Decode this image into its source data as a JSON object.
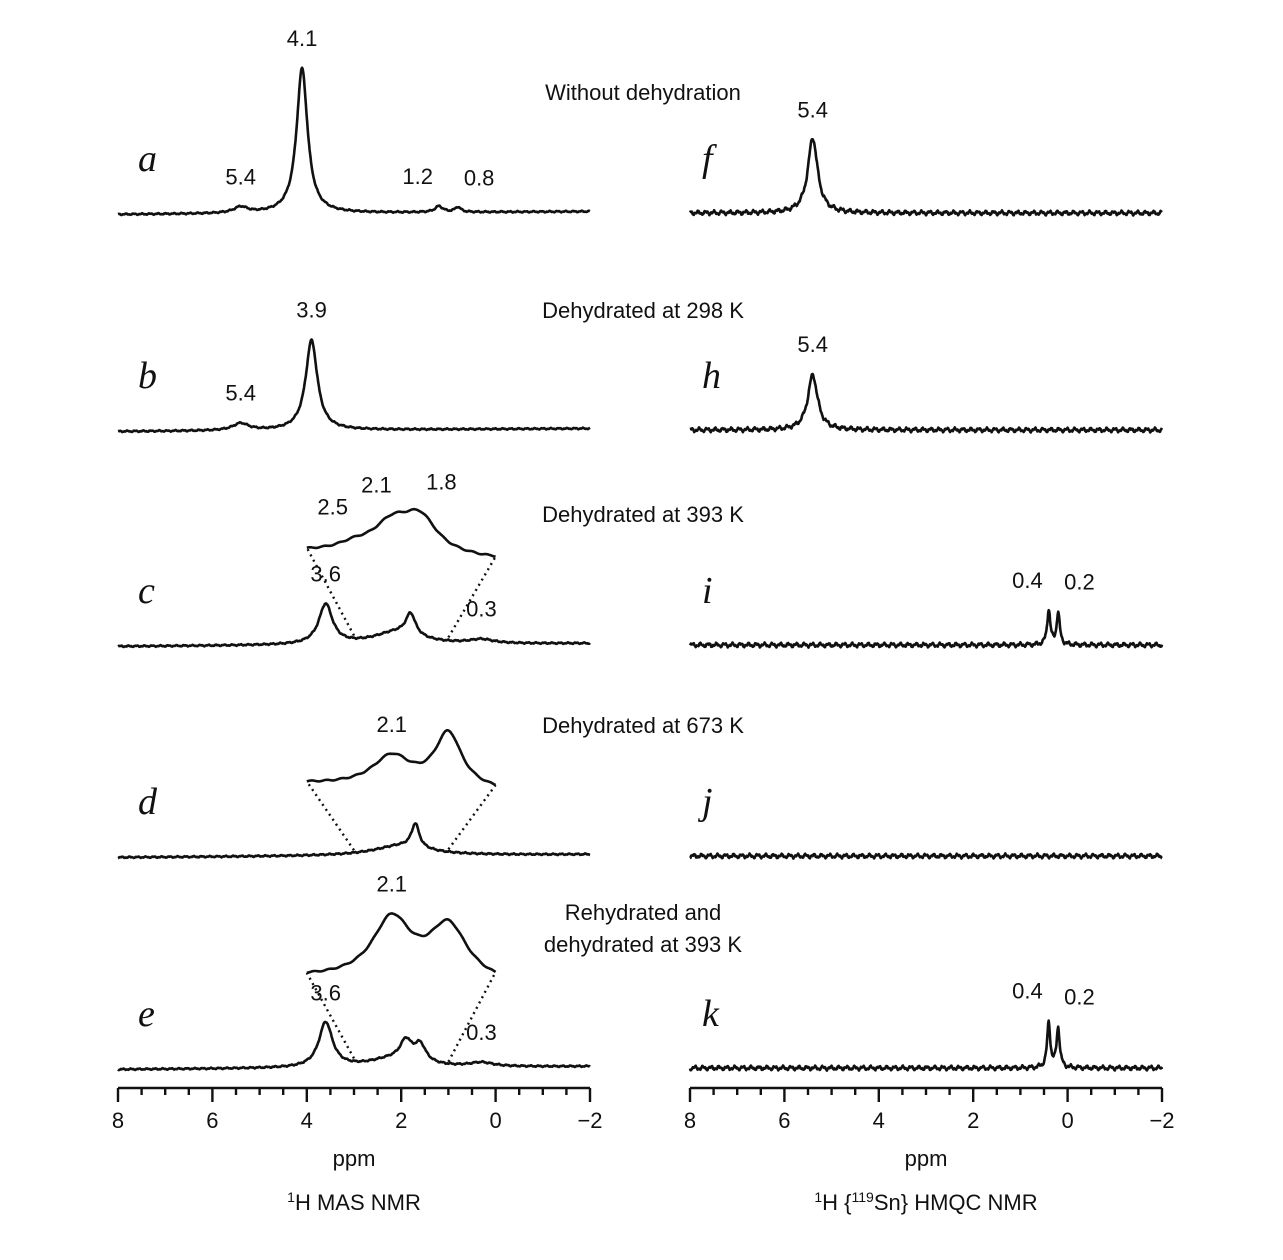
{
  "conditions": [
    [
      "Without dehydration"
    ],
    [
      "Dehydrated at 298 K"
    ],
    [
      "Dehydrated at 393 K"
    ],
    [
      "Dehydrated at 673 K"
    ],
    [
      "Rehydrated and",
      "dehydrated at 393 K"
    ]
  ],
  "panels": [
    {
      "title_parts": [
        {
          "text": "1",
          "sup": true
        },
        {
          "text": "H MAS NMR"
        }
      ],
      "x_label": "ppm",
      "xlim": [
        8,
        -2
      ],
      "xticks": [
        8,
        6,
        4,
        2,
        0,
        {
          "value": -2,
          "label": "−2"
        }
      ],
      "spectra": [
        {
          "letter": "a",
          "peaks": [
            {
              "ppm": 5.4,
              "intensity": 6,
              "fwhm": 0.35
            },
            {
              "ppm": 4.1,
              "intensity": 145,
              "fwhm": 0.28
            },
            {
              "ppm": 1.2,
              "intensity": 6,
              "fwhm": 0.2
            },
            {
              "ppm": 0.8,
              "intensity": 5,
              "fwhm": 0.15
            }
          ]
        },
        {
          "letter": "b",
          "peaks": [
            {
              "ppm": 5.4,
              "intensity": 7,
              "fwhm": 0.4
            },
            {
              "ppm": 3.9,
              "intensity": 90,
              "fwhm": 0.3
            }
          ]
        },
        {
          "letter": "c",
          "peaks": [
            {
              "ppm": 3.6,
              "intensity": 40,
              "fwhm": 0.35
            },
            {
              "ppm": 0.3,
              "intensity": 4,
              "fwhm": 0.6
            }
          ],
          "other_peaks": [
            {
              "ppm": 2.1,
              "intensity": 12,
              "fwhm": 1.2
            },
            {
              "ppm": 1.8,
              "intensity": 22,
              "fwhm": 0.25
            }
          ],
          "inset": {
            "range": [
              3,
              1
            ],
            "peaks": [
              {
                "ppm": 2.5,
                "intensity": 6,
                "fwhm": 0.4
              },
              {
                "ppm": 2.1,
                "intensity": 28,
                "fwhm": 0.5
              },
              {
                "ppm": 1.8,
                "intensity": 34,
                "fwhm": 0.45
              }
            ]
          }
        },
        {
          "letter": "d",
          "peaks": [],
          "other_peaks": [
            {
              "ppm": 1.7,
              "intensity": 24,
              "fwhm": 0.2
            },
            {
              "ppm": 2.0,
              "intensity": 10,
              "fwhm": 1.4
            }
          ],
          "inset": {
            "range": [
              3,
              1
            ],
            "peaks": [
              {
                "ppm": 2.1,
                "intensity": 30,
                "fwhm": 0.5
              }
            ],
            "other_peaks": [
              {
                "ppm": 1.5,
                "intensity": 55,
                "fwhm": 0.35
              }
            ]
          }
        },
        {
          "letter": "e",
          "peaks": [
            {
              "ppm": 3.6,
              "intensity": 45,
              "fwhm": 0.35
            },
            {
              "ppm": 0.3,
              "intensity": 4,
              "fwhm": 0.6
            }
          ],
          "other_peaks": [
            {
              "ppm": 1.9,
              "intensity": 20,
              "fwhm": 0.3
            },
            {
              "ppm": 1.6,
              "intensity": 18,
              "fwhm": 0.3
            },
            {
              "ppm": 2.2,
              "intensity": 8,
              "fwhm": 1.2
            }
          ],
          "inset": {
            "range": [
              3,
              1
            ],
            "peaks": [
              {
                "ppm": 2.1,
                "intensity": 60,
                "fwhm": 0.5
              }
            ],
            "other_peaks": [
              {
                "ppm": 1.5,
                "intensity": 55,
                "fwhm": 0.5
              }
            ]
          }
        }
      ]
    },
    {
      "title_parts": [
        {
          "text": "1",
          "sup": true
        },
        {
          "text": "H {"
        },
        {
          "text": "119",
          "sup": true
        },
        {
          "text": "Sn} HMQC NMR"
        }
      ],
      "x_label": "ppm",
      "xlim": [
        8,
        -2
      ],
      "xticks": [
        8,
        6,
        4,
        2,
        0,
        {
          "value": -2,
          "label": "−2"
        }
      ],
      "spectra": [
        {
          "letter": "f",
          "peaks": [
            {
              "ppm": 5.4,
              "intensity": 75,
              "fwhm": 0.25
            }
          ]
        },
        {
          "letter": "h",
          "peaks": [
            {
              "ppm": 5.4,
              "intensity": 55,
              "fwhm": 0.25
            }
          ]
        },
        {
          "letter": "i",
          "peaks": [
            {
              "ppm": 0.4,
              "intensity": 35,
              "fwhm": 0.08
            },
            {
              "ppm": 0.2,
              "intensity": 32,
              "fwhm": 0.08
            }
          ]
        },
        {
          "letter": "j",
          "peaks": []
        },
        {
          "letter": "k",
          "peaks": [
            {
              "ppm": 0.4,
              "intensity": 45,
              "fwhm": 0.08
            },
            {
              "ppm": 0.2,
              "intensity": 40,
              "fwhm": 0.08
            }
          ]
        }
      ]
    }
  ]
}
